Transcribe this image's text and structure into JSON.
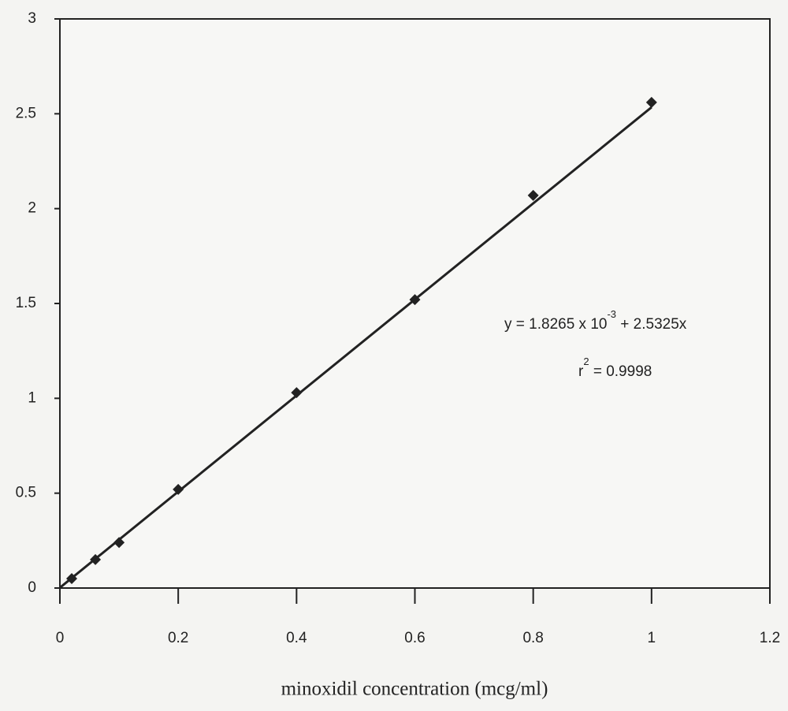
{
  "chart_data": {
    "type": "scatter",
    "x_label": "minoxidil concentration (mcg/ml)",
    "x": [
      0.02,
      0.06,
      0.1,
      0.2,
      0.4,
      0.6,
      0.8,
      1.0
    ],
    "values": [
      0.05,
      0.15,
      0.24,
      0.52,
      1.03,
      1.52,
      2.07,
      2.56
    ],
    "color": "#222222",
    "fit": {
      "x": [
        0,
        1.0
      ],
      "values": [
        0.0018265,
        2.5343265
      ]
    },
    "xlim": [
      0,
      1.2
    ],
    "xticks": [
      0,
      0.2,
      0.4,
      0.6,
      0.8,
      1,
      1.2
    ],
    "ylim": [
      0,
      3
    ],
    "yticks": [
      0,
      0.5,
      1,
      1.5,
      2,
      2.5,
      3
    ],
    "annotations": [
      {
        "text": "y = 1.8265 x 10",
        "sup": "-3",
        "rest": " + 2.5325x"
      },
      {
        "text": "r",
        "sup": "2",
        "rest": " = 0.9998"
      }
    ]
  }
}
